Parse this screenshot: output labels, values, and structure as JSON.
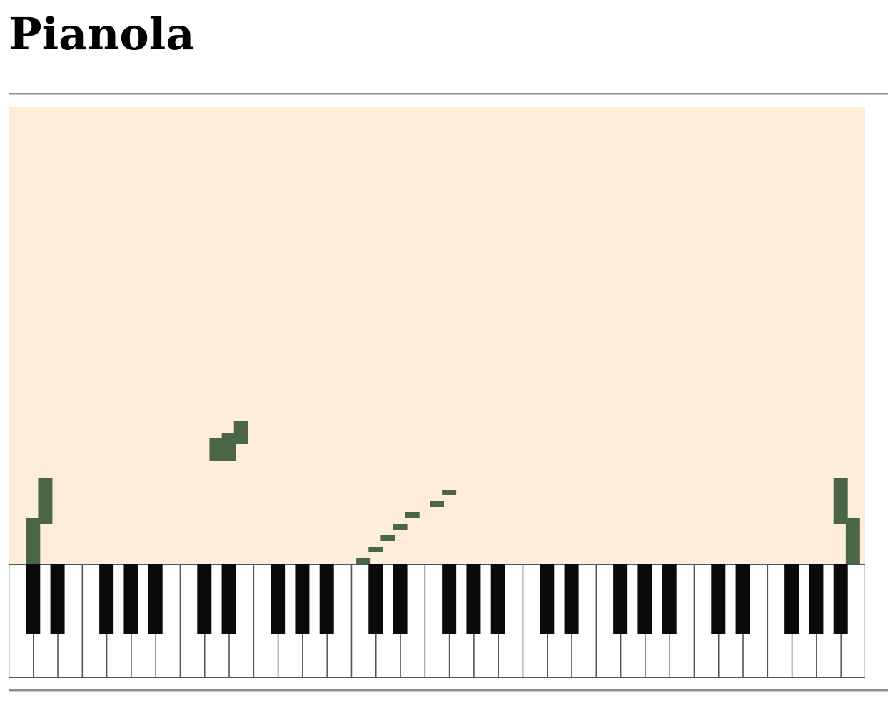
{
  "page": {
    "title": "Pianola"
  },
  "colors": {
    "roll_background": "#ffeddc",
    "note": "#4a6646",
    "white_key": "#ffffff",
    "black_key": "#0a0a0a",
    "key_border": "#555555"
  },
  "keyboard": {
    "white_key_count": 35,
    "black_key_pattern": [
      1,
      1,
      0,
      1,
      1,
      1,
      0
    ]
  },
  "roll": {
    "visible_beats": 40,
    "notes": [
      {
        "key": 1,
        "start": 0,
        "length": 4
      },
      {
        "key": 2,
        "start": 3.5,
        "length": 4
      },
      {
        "key": 14,
        "start": 9,
        "length": 2
      },
      {
        "key": 15,
        "start": 9,
        "length": 2.5
      },
      {
        "key": 16,
        "start": 10.5,
        "length": 2
      },
      {
        "key": 24,
        "start": 0,
        "length": 0.5
      },
      {
        "key": 25,
        "start": 1,
        "length": 0.5
      },
      {
        "key": 26,
        "start": 2,
        "length": 0.5
      },
      {
        "key": 27,
        "start": 3,
        "length": 0.5
      },
      {
        "key": 28,
        "start": 4,
        "length": 0.5
      },
      {
        "key": 29,
        "start": 5,
        "length": 0.5
      },
      {
        "key": 30,
        "start": 6,
        "length": 0.5
      },
      {
        "key": 58,
        "start": 3.5,
        "length": 4
      },
      {
        "key": 59,
        "start": 0,
        "length": 4
      }
    ]
  }
}
